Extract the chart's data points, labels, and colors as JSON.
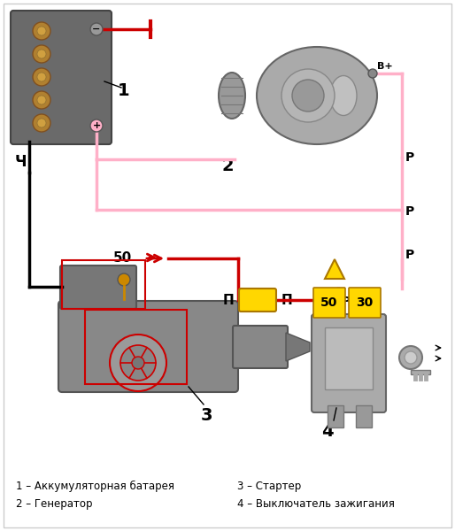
{
  "bg_color": "#ffffff",
  "label_1": "1 – Аккумуляторная батарея",
  "label_2": "2 – Генератор",
  "label_3": "3 – Стартер",
  "label_4": "4 – Выключатель зажигания",
  "pink": "#FFB0C8",
  "red": "#CC0000",
  "yellow": "#FFD700",
  "label_num_1": "1",
  "label_num_2": "2",
  "label_num_3": "3",
  "label_num_4": "4",
  "label_50": "50",
  "label_30": "30",
  "label_B": "B+",
  "label_ch": "Ч",
  "label_P": "P",
  "label_Pi": "П"
}
